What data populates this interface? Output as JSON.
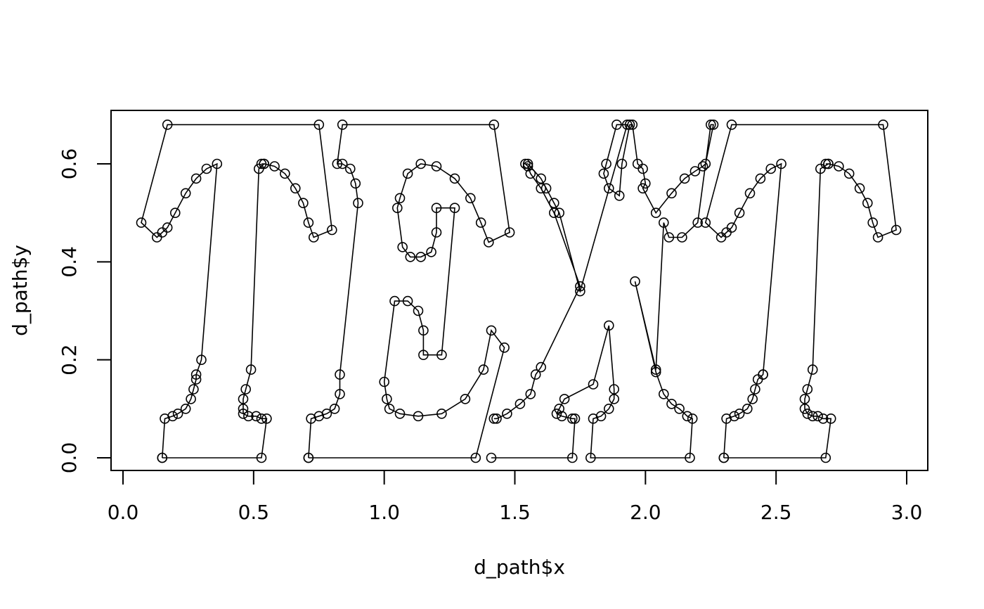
{
  "chart_data": {
    "type": "scatter",
    "title": "",
    "xlabel": "d_path$x",
    "ylabel": "d_path$y",
    "xlim": [
      -0.05,
      3.08
    ],
    "ylim": [
      -0.05,
      0.7
    ],
    "x_ticks": [
      "0.0",
      "0.5",
      "1.0",
      "1.5",
      "2.0",
      "2.5",
      "3.0"
    ],
    "y_ticks": [
      "0.0",
      "0.2",
      "0.4",
      "0.6"
    ],
    "x_tick_values": [
      0.0,
      0.5,
      1.0,
      1.5,
      2.0,
      2.5,
      3.0
    ],
    "y_tick_values": [
      0.0,
      0.2,
      0.4,
      0.6
    ],
    "style": "points connected by lines (type='o')",
    "grid": false,
    "series": [
      {
        "glyph": "T",
        "x": [
          0.15,
          0.16,
          0.19,
          0.21,
          0.24,
          0.26,
          0.27,
          0.28,
          0.28,
          0.3,
          0.36,
          0.32,
          0.28,
          0.24,
          0.2,
          0.17,
          0.15,
          0.13,
          0.07,
          0.17,
          0.75,
          0.8,
          0.73,
          0.71,
          0.69,
          0.66,
          0.62,
          0.58,
          0.54,
          0.53,
          0.54,
          0.52,
          0.49,
          0.47,
          0.46,
          0.46,
          0.46,
          0.48,
          0.51,
          0.53,
          0.55,
          0.53,
          0.15
        ],
        "y": [
          0.0,
          0.08,
          0.085,
          0.09,
          0.1,
          0.12,
          0.14,
          0.16,
          0.17,
          0.2,
          0.6,
          0.59,
          0.57,
          0.54,
          0.5,
          0.47,
          0.46,
          0.45,
          0.48,
          0.68,
          0.68,
          0.465,
          0.45,
          0.48,
          0.52,
          0.55,
          0.58,
          0.595,
          0.6,
          0.6,
          0.6,
          0.59,
          0.18,
          0.14,
          0.12,
          0.1,
          0.09,
          0.085,
          0.085,
          0.08,
          0.08,
          0.0,
          0.0
        ]
      },
      {
        "glyph": "E",
        "x": [
          0.71,
          0.72,
          0.75,
          0.78,
          0.81,
          0.83,
          0.83,
          0.9,
          0.89,
          0.87,
          0.84,
          0.82,
          0.84,
          1.42,
          1.48,
          1.4,
          1.37,
          1.33,
          1.27,
          1.2,
          1.14,
          1.09,
          1.06,
          1.05,
          1.07,
          1.1,
          1.14,
          1.18,
          1.2,
          1.2,
          1.27,
          1.22,
          1.15,
          1.15,
          1.13,
          1.09,
          1.04,
          1.0,
          1.01,
          1.02,
          1.06,
          1.13,
          1.22,
          1.31,
          1.38,
          1.41,
          1.46,
          1.35,
          0.71
        ],
        "y": [
          0.0,
          0.08,
          0.085,
          0.09,
          0.1,
          0.13,
          0.17,
          0.52,
          0.56,
          0.59,
          0.6,
          0.6,
          0.68,
          0.68,
          0.46,
          0.44,
          0.48,
          0.53,
          0.57,
          0.595,
          0.6,
          0.58,
          0.53,
          0.51,
          0.43,
          0.41,
          0.41,
          0.42,
          0.46,
          0.51,
          0.51,
          0.21,
          0.21,
          0.26,
          0.3,
          0.32,
          0.32,
          0.155,
          0.12,
          0.1,
          0.09,
          0.085,
          0.09,
          0.12,
          0.18,
          0.26,
          0.225,
          0.0,
          0.0
        ]
      },
      {
        "glyph": "X",
        "x": [
          1.42,
          1.43,
          1.47,
          1.52,
          1.56,
          1.58,
          1.6,
          1.75,
          1.65,
          1.6,
          1.56,
          1.55,
          1.54,
          1.55,
          1.6,
          1.62,
          1.65,
          1.67,
          1.75,
          1.93,
          1.89,
          1.85,
          1.84,
          1.86,
          1.9,
          1.91,
          1.94,
          1.95,
          1.97,
          1.99,
          2.0,
          1.99,
          2.04,
          2.1,
          2.15,
          2.19,
          2.22,
          2.23,
          2.26,
          2.25,
          2.2,
          2.14,
          2.09,
          2.07,
          2.04,
          1.96,
          2.04,
          2.07,
          2.1,
          2.13,
          2.16,
          2.18,
          2.17,
          1.79,
          1.8,
          1.83,
          1.86,
          1.88,
          1.88,
          1.86,
          1.8,
          1.69,
          1.67,
          1.66,
          1.68,
          1.72,
          1.73,
          1.72,
          1.41
        ],
        "y": [
          0.08,
          0.08,
          0.09,
          0.11,
          0.13,
          0.17,
          0.185,
          0.35,
          0.5,
          0.55,
          0.58,
          0.595,
          0.6,
          0.6,
          0.57,
          0.55,
          0.52,
          0.5,
          0.34,
          0.68,
          0.68,
          0.6,
          0.58,
          0.55,
          0.535,
          0.6,
          0.68,
          0.68,
          0.6,
          0.59,
          0.56,
          0.55,
          0.5,
          0.54,
          0.57,
          0.585,
          0.595,
          0.6,
          0.68,
          0.68,
          0.48,
          0.45,
          0.45,
          0.48,
          0.18,
          0.36,
          0.175,
          0.13,
          0.11,
          0.1,
          0.085,
          0.08,
          0.0,
          0.0,
          0.08,
          0.085,
          0.1,
          0.12,
          0.14,
          0.27,
          0.15,
          0.12,
          0.1,
          0.09,
          0.085,
          0.08,
          0.08,
          0.0,
          0.0
        ]
      },
      {
        "glyph": "T",
        "x": [
          2.3,
          2.31,
          2.34,
          2.36,
          2.39,
          2.41,
          2.42,
          2.43,
          2.45,
          2.45,
          2.52,
          2.48,
          2.44,
          2.4,
          2.36,
          2.33,
          2.31,
          2.29,
          2.23,
          2.33,
          2.91,
          2.96,
          2.89,
          2.87,
          2.85,
          2.82,
          2.78,
          2.74,
          2.7,
          2.69,
          2.7,
          2.67,
          2.64,
          2.62,
          2.61,
          2.61,
          2.62,
          2.64,
          2.66,
          2.68,
          2.71,
          2.69,
          2.3
        ],
        "y": [
          0.0,
          0.08,
          0.085,
          0.09,
          0.1,
          0.12,
          0.14,
          0.16,
          0.17,
          0.17,
          0.6,
          0.59,
          0.57,
          0.54,
          0.5,
          0.47,
          0.46,
          0.45,
          0.48,
          0.68,
          0.68,
          0.465,
          0.45,
          0.48,
          0.52,
          0.55,
          0.58,
          0.595,
          0.6,
          0.6,
          0.6,
          0.59,
          0.18,
          0.14,
          0.12,
          0.1,
          0.09,
          0.085,
          0.085,
          0.08,
          0.08,
          0.0,
          0.0
        ]
      }
    ]
  }
}
